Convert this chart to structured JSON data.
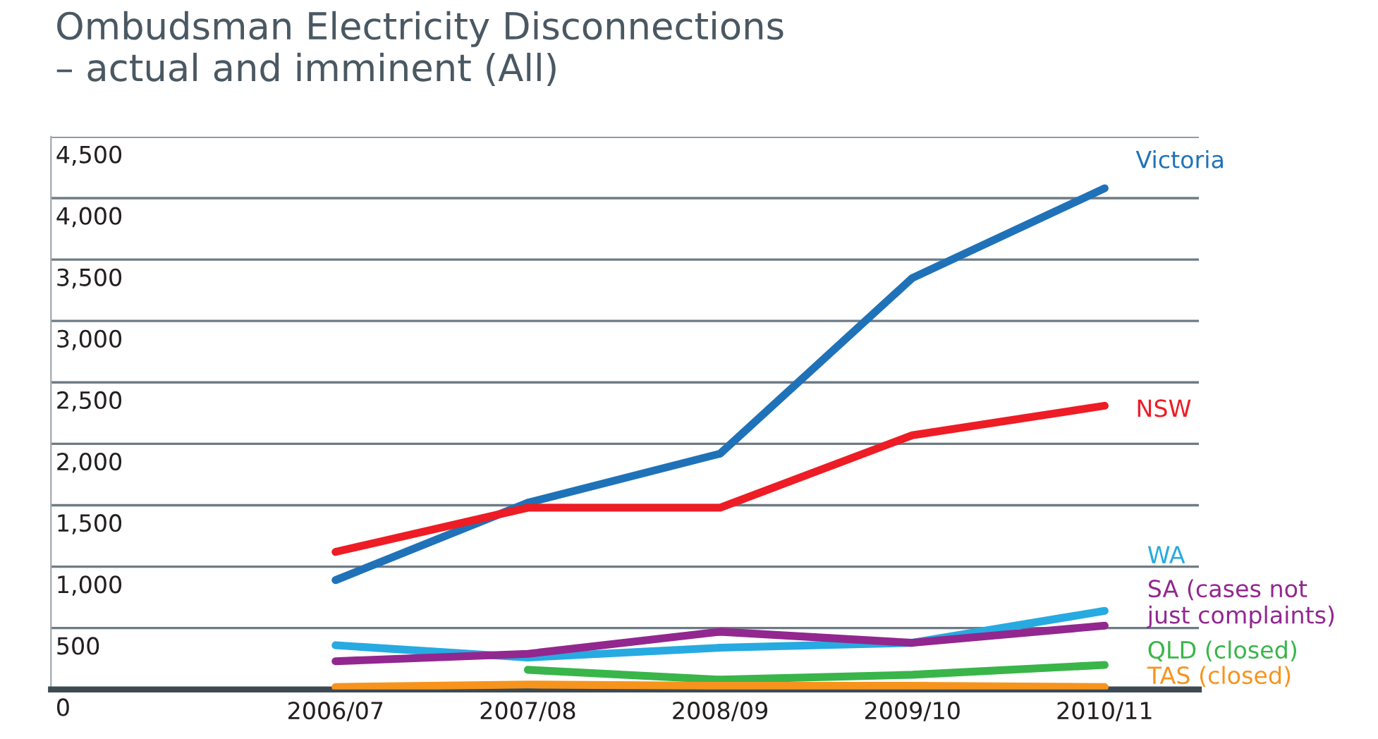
{
  "chart_data": {
    "type": "line",
    "title": "Ombudsman Electricity Disconnections\n– actual and imminent (All)",
    "categories": [
      "2006/07",
      "2007/08",
      "2008/09",
      "2009/10",
      "2010/11"
    ],
    "series": [
      {
        "name": "Victoria",
        "color": "#1f72b8",
        "values": [
          890,
          1520,
          1920,
          3350,
          4080
        ]
      },
      {
        "name": "NSW",
        "color": "#ee1c25",
        "values": [
          1120,
          1480,
          1480,
          2070,
          2310
        ]
      },
      {
        "name": "WA",
        "color": "#27aae1",
        "values": [
          360,
          260,
          340,
          380,
          640
        ]
      },
      {
        "name": "SA (cases not\njust complaints)",
        "color": "#92278f",
        "values": [
          230,
          290,
          470,
          380,
          520
        ]
      },
      {
        "name": "QLD (closed)",
        "color": "#39b54a",
        "values": [
          null,
          160,
          80,
          120,
          200
        ]
      },
      {
        "name": "TAS (closed)",
        "color": "#f7941d",
        "values": [
          20,
          40,
          30,
          30,
          20
        ]
      }
    ],
    "ylim": [
      0,
      4500
    ],
    "yticks": [
      {
        "value": 0,
        "label": "0"
      },
      {
        "value": 500,
        "label": "500"
      },
      {
        "value": 1000,
        "label": "1,000"
      },
      {
        "value": 1500,
        "label": "1,500"
      },
      {
        "value": 2000,
        "label": "2,000"
      },
      {
        "value": 2500,
        "label": "2,500"
      },
      {
        "value": 3000,
        "label": "3,000"
      },
      {
        "value": 3500,
        "label": "3,500"
      },
      {
        "value": 4000,
        "label": "4,000"
      },
      {
        "value": 4500,
        "label": "4,500"
      }
    ],
    "grid": "y",
    "marker": "none",
    "line_style": "solid",
    "legend": false
  }
}
